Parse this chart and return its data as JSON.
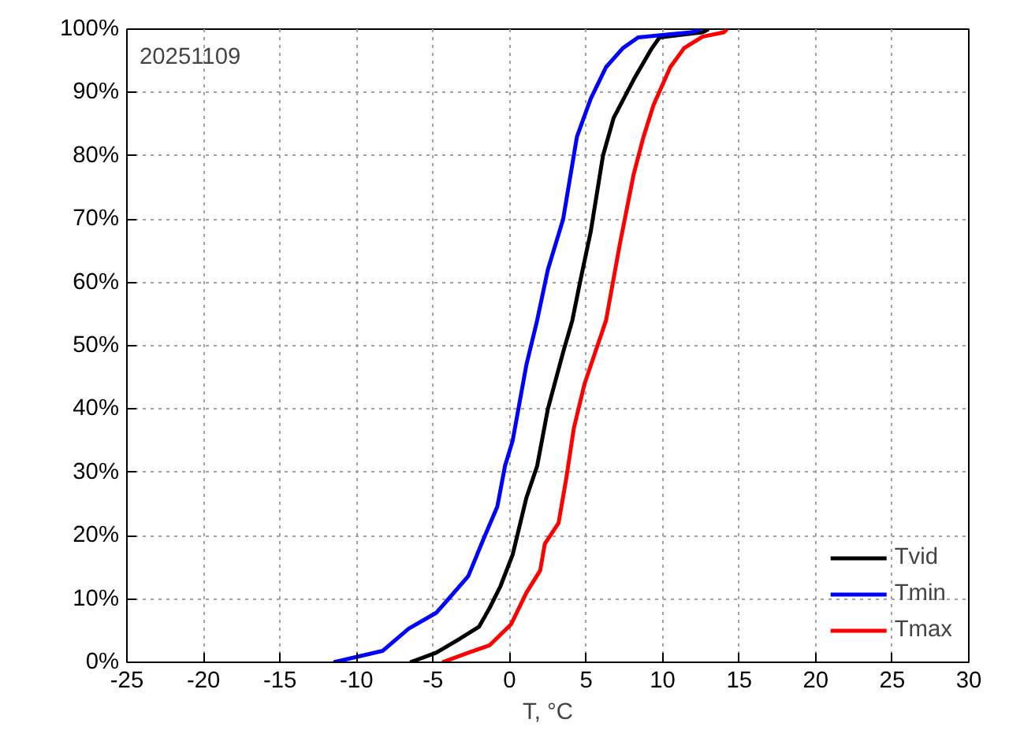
{
  "chart_data": {
    "type": "line",
    "xlabel": "T, °C",
    "annotations": [
      "20251109"
    ],
    "xlim": [
      -25,
      30
    ],
    "xticks": [
      -25,
      -20,
      -15,
      -10,
      -5,
      0,
      5,
      10,
      15,
      20,
      25,
      30
    ],
    "ylim": [
      0,
      100
    ],
    "yticks": [
      {
        "value": 0,
        "label": "0%"
      },
      {
        "value": 10,
        "label": "10%"
      },
      {
        "value": 20,
        "label": "20%"
      },
      {
        "value": 30,
        "label": "30%"
      },
      {
        "value": 40,
        "label": "40%"
      },
      {
        "value": 50,
        "label": "50%"
      },
      {
        "value": 60,
        "label": "60%"
      },
      {
        "value": 70,
        "label": "70%"
      },
      {
        "value": 80,
        "label": "80%"
      },
      {
        "value": 90,
        "label": "90%"
      },
      {
        "value": 100,
        "label": "100%"
      }
    ],
    "grid": true,
    "legend": "bottom right",
    "marker": "none",
    "line_style": "solid",
    "series": [
      {
        "name": "Tvid",
        "color": "#000000",
        "x": [
          -6.5,
          -4.8,
          -3.4,
          -2,
          -1.3,
          -0.6,
          0.2,
          1.1,
          1.8,
          2.5,
          3.5,
          4.1,
          4.6,
          5.3,
          6.1,
          6.8,
          8.1,
          9.3,
          9.8,
          11.5,
          12.6,
          13
        ],
        "values": [
          0,
          1.5,
          3.5,
          5.6,
          8.6,
          12,
          17,
          26,
          31,
          40,
          49,
          54,
          60,
          68,
          80,
          86,
          92,
          97,
          98.7,
          99.2,
          99.5,
          100
        ]
      },
      {
        "name": "Tmin",
        "color": "#0000ff",
        "x": [
          -11.5,
          -8.3,
          -6.6,
          -4.8,
          -4.1,
          -2.7,
          -1.7,
          -0.8,
          -0.3,
          0.2,
          1.1,
          1.8,
          2.5,
          3.5,
          4.4,
          5.3,
          6.3,
          7.4,
          8.4,
          10.5,
          11.9,
          12.5
        ],
        "values": [
          0,
          1.8,
          5.3,
          7.8,
          9.7,
          13.6,
          19.5,
          24.6,
          31,
          35,
          47,
          54,
          62,
          70,
          83,
          89,
          94,
          97,
          98.7,
          99.2,
          99.5,
          100
        ]
      },
      {
        "name": "Tmax",
        "color": "#ff0000",
        "x": [
          -4.4,
          -2.7,
          -1.3,
          0.1,
          1.1,
          2,
          2.3,
          3.2,
          3.7,
          4.2,
          4.9,
          5.6,
          6.3,
          7.2,
          8.1,
          8.75,
          9.4,
          10.5,
          11.4,
          12.6,
          14,
          14.2
        ],
        "values": [
          0,
          1.5,
          2.7,
          6,
          11,
          14.5,
          18.7,
          22,
          29,
          37,
          44,
          49,
          54,
          66,
          77,
          83,
          88,
          94,
          97,
          98.8,
          99.5,
          100
        ]
      }
    ]
  }
}
